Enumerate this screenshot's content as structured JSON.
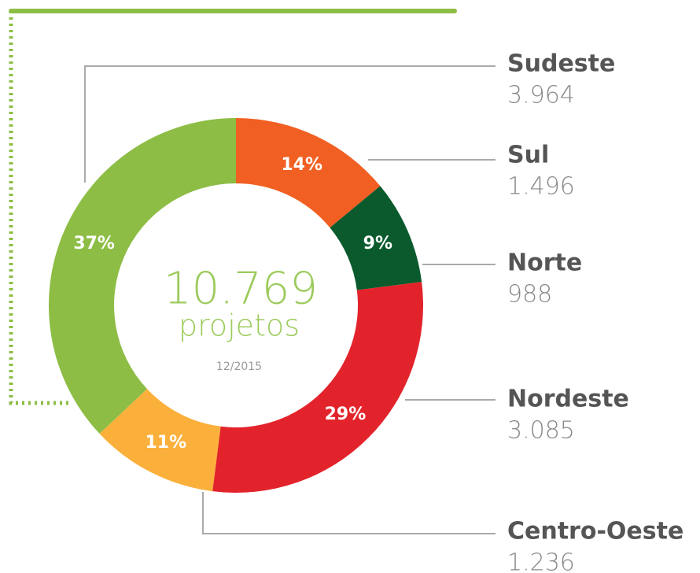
{
  "chart_data": {
    "type": "pie",
    "donut": true,
    "categories": [
      "Sul",
      "Norte",
      "Nordeste",
      "Centro-Oeste",
      "Sudeste"
    ],
    "values": [
      14,
      9,
      29,
      11,
      37
    ],
    "value_labels": [
      "14%",
      "9%",
      "29%",
      "11%",
      "37%"
    ],
    "counts": [
      1496,
      988,
      3085,
      1236,
      3964
    ],
    "count_labels": [
      "1.496",
      "988",
      "3.085",
      "1.236",
      "3.964"
    ],
    "colors": [
      "#f15f22",
      "#0a5a2d",
      "#e3232b",
      "#fbb03b",
      "#8dbd45"
    ],
    "total": 10769,
    "total_label": "10.769",
    "center_text": "projetos",
    "date": "12/2015"
  }
}
